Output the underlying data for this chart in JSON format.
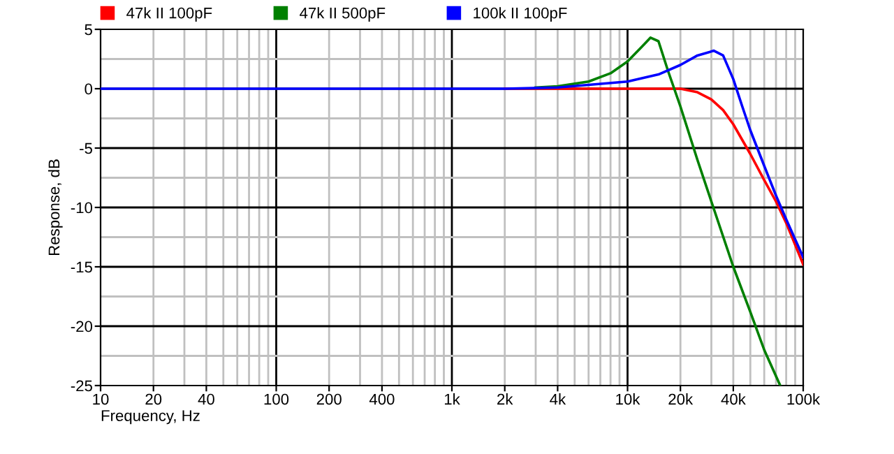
{
  "chart_data": {
    "type": "line",
    "xlabel": "Frequency, Hz",
    "ylabel": "Response, dB",
    "log": "x",
    "grid": true,
    "legend": "top",
    "xlim": [
      10,
      100000
    ],
    "ylim": [
      -25,
      5
    ],
    "xticks": [
      10,
      20,
      40,
      100,
      200,
      400,
      {
        "value": 1000,
        "label": "1k"
      },
      {
        "value": 2000,
        "label": "2k"
      },
      {
        "value": 4000,
        "label": "4k"
      },
      {
        "value": 10000,
        "label": "10k"
      },
      {
        "value": 20000,
        "label": "20k"
      },
      {
        "value": 40000,
        "label": "40k"
      },
      {
        "value": 100000,
        "label": "100k"
      }
    ],
    "yticks": [
      5,
      0,
      -5,
      -10,
      -15,
      -20,
      -25
    ],
    "series": [
      {
        "name": "47k II 100pF",
        "color": "#ff0000",
        "x": [
          2000,
          10000,
          18000,
          20000,
          25000,
          30000,
          35000,
          40000,
          50000,
          60000,
          70000,
          80000,
          100000
        ],
        "values": [
          0,
          0,
          0,
          0,
          -0.3,
          -0.9,
          -1.8,
          -3,
          -5.5,
          -7.7,
          -9.5,
          -11.3,
          -14.8
        ]
      },
      {
        "name": "47k II 500pF",
        "color": "#008000",
        "x": [
          3000,
          4000,
          6000,
          8000,
          10000,
          12000,
          13500,
          15000,
          17000,
          20000,
          25000,
          30000,
          40000,
          50000,
          60000,
          74000
        ],
        "values": [
          0.1,
          0.2,
          0.6,
          1.3,
          2.3,
          3.5,
          4.3,
          4.0,
          1.5,
          -1.5,
          -6,
          -9.5,
          -15,
          -18.8,
          -22,
          -25
        ]
      },
      {
        "name": "100k II 100pF",
        "color": "#0000ff",
        "x": [
          10,
          100,
          1000,
          2000,
          4000,
          10000,
          15000,
          20000,
          25000,
          31000,
          35000,
          40000,
          45000,
          50000,
          60000,
          70000,
          80000,
          100000
        ],
        "values": [
          0,
          0,
          0,
          0,
          0.1,
          0.6,
          1.2,
          2.0,
          2.8,
          3.2,
          2.8,
          0.8,
          -1.5,
          -3.5,
          -6.5,
          -9,
          -11,
          -14.2
        ]
      }
    ]
  }
}
